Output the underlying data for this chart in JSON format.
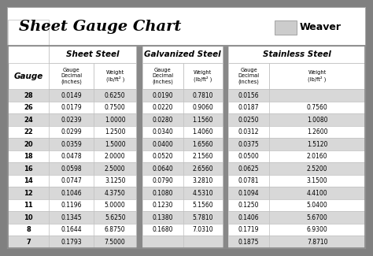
{
  "title": "Sheet Gauge Chart",
  "bg_outer": "#808080",
  "bg_white": "#ffffff",
  "bg_table": "#f2f2f2",
  "header_bg": "#ffffff",
  "row_bg_shaded": "#d8d8d8",
  "row_bg_white": "#ffffff",
  "gauge_col_bg": "#ffffff",
  "section_divider": "#888888",
  "gauges": [
    28,
    26,
    24,
    22,
    20,
    18,
    16,
    14,
    12,
    11,
    10,
    8,
    7
  ],
  "sheet_steel": [
    [
      "0.0149",
      "0.6250"
    ],
    [
      "0.0179",
      "0.7500"
    ],
    [
      "0.0239",
      "1.0000"
    ],
    [
      "0.0299",
      "1.2500"
    ],
    [
      "0.0359",
      "1.5000"
    ],
    [
      "0.0478",
      "2.0000"
    ],
    [
      "0.0598",
      "2.5000"
    ],
    [
      "0.0747",
      "3.1250"
    ],
    [
      "0.1046",
      "4.3750"
    ],
    [
      "0.1196",
      "5.0000"
    ],
    [
      "0.1345",
      "5.6250"
    ],
    [
      "0.1644",
      "6.8750"
    ],
    [
      "0.1793",
      "7.5000"
    ]
  ],
  "galvanized_steel": [
    [
      "0.0190",
      "0.7810"
    ],
    [
      "0.0220",
      "0.9060"
    ],
    [
      "0.0280",
      "1.1560"
    ],
    [
      "0.0340",
      "1.4060"
    ],
    [
      "0.0400",
      "1.6560"
    ],
    [
      "0.0520",
      "2.1560"
    ],
    [
      "0.0640",
      "2.6560"
    ],
    [
      "0.0790",
      "3.2810"
    ],
    [
      "0.1080",
      "4.5310"
    ],
    [
      "0.1230",
      "5.1560"
    ],
    [
      "0.1380",
      "5.7810"
    ],
    [
      "0.1680",
      "7.0310"
    ],
    [
      "",
      ""
    ]
  ],
  "stainless_steel": [
    [
      "0.0156",
      ""
    ],
    [
      "0.0187",
      "0.7560"
    ],
    [
      "0.0250",
      "1.0080"
    ],
    [
      "0.0312",
      "1.2600"
    ],
    [
      "0.0375",
      "1.5120"
    ],
    [
      "0.0500",
      "2.0160"
    ],
    [
      "0.0625",
      "2.5200"
    ],
    [
      "0.0781",
      "3.1500"
    ],
    [
      "0.1094",
      "4.4100"
    ],
    [
      "0.1250",
      "5.0400"
    ],
    [
      "0.1406",
      "5.6700"
    ],
    [
      "0.1719",
      "6.9300"
    ],
    [
      "0.1875",
      "7.8710"
    ]
  ],
  "section_headers": [
    "Sheet Steel",
    "Galvanized Steel",
    "Stainless Steel"
  ],
  "gauge_label": "Gauge",
  "sub_col1": "Gauge\nDecimal\n(inches)",
  "sub_col2": "Weight\n(lb/ft² )",
  "weaver_text": "Weaver"
}
